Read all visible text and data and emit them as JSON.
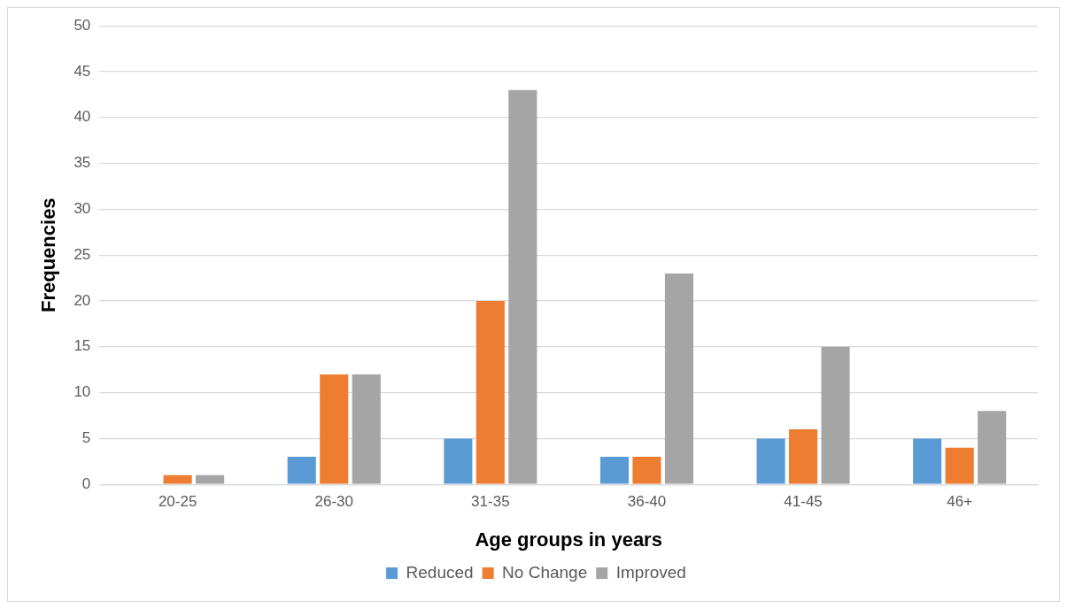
{
  "chart_data": {
    "type": "bar",
    "xlabel": "Age groups in years",
    "ylabel": "Frequencies",
    "categories": [
      "20-25",
      "26-30",
      "31-35",
      "36-40",
      "41-45",
      "46+"
    ],
    "series": [
      {
        "name": "Reduced",
        "color": "#5b9bd5",
        "values": [
          0,
          3,
          5,
          3,
          5,
          5
        ]
      },
      {
        "name": "No Change",
        "color": "#ed7d31",
        "values": [
          1,
          12,
          20,
          3,
          6,
          4
        ]
      },
      {
        "name": "Improved",
        "color": "#a5a5a5",
        "values": [
          1,
          12,
          43,
          23,
          15,
          8
        ]
      }
    ],
    "ylim": [
      0,
      50
    ],
    "yticks": [
      0,
      5,
      10,
      15,
      20,
      25,
      30,
      35,
      40,
      45,
      50
    ],
    "grid": "y",
    "legend": "bottom"
  }
}
